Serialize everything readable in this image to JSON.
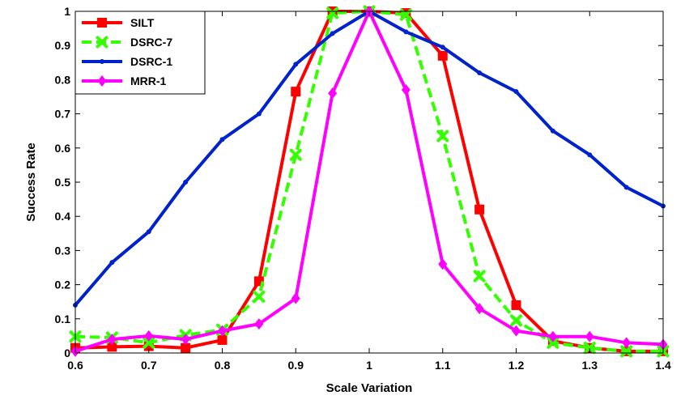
{
  "chart_data": {
    "type": "line",
    "title": "",
    "xlabel": "Scale Variation",
    "ylabel": "Success Rate",
    "xlim": [
      0.6,
      1.4
    ],
    "ylim": [
      0,
      1
    ],
    "xticks": [
      "0.6",
      "0.7",
      "0.8",
      "0.9",
      "1",
      "1.1",
      "1.2",
      "1.3",
      "1.4"
    ],
    "yticks": [
      "0",
      "0.1",
      "0.2",
      "0.3",
      "0.4",
      "0.5",
      "0.6",
      "0.7",
      "0.8",
      "0.9",
      "1"
    ],
    "x": [
      0.6,
      0.65,
      0.7,
      0.75,
      0.8,
      0.85,
      0.9,
      0.95,
      1.0,
      1.05,
      1.1,
      1.15,
      1.2,
      1.25,
      1.3,
      1.35,
      1.4
    ],
    "legend_position": "top-left",
    "series": [
      {
        "name": "SILT",
        "color": "#ff0000",
        "marker": "square",
        "dash": "solid",
        "values": [
          0.015,
          0.018,
          0.02,
          0.015,
          0.038,
          0.21,
          0.765,
          1.0,
          1.0,
          0.995,
          0.87,
          0.42,
          0.14,
          0.035,
          0.015,
          0.005,
          0.005
        ]
      },
      {
        "name": "DSRC-7",
        "color": "#33ff00",
        "marker": "x",
        "dash": "dashed",
        "values": [
          0.048,
          0.045,
          0.03,
          0.052,
          0.068,
          0.165,
          0.58,
          0.995,
          1.0,
          0.99,
          0.635,
          0.225,
          0.095,
          0.03,
          0.015,
          0.005,
          0.005
        ]
      },
      {
        "name": "DSRC-1",
        "color": "#0022cc",
        "marker": "dot",
        "dash": "solid",
        "values": [
          0.14,
          0.265,
          0.355,
          0.5,
          0.625,
          0.7,
          0.845,
          0.935,
          1.0,
          0.94,
          0.895,
          0.82,
          0.765,
          0.65,
          0.58,
          0.485,
          0.43
        ]
      },
      {
        "name": "MRR-1",
        "color": "#ff00ff",
        "marker": "diamond",
        "dash": "solid",
        "values": [
          0.005,
          0.04,
          0.05,
          0.04,
          0.065,
          0.085,
          0.16,
          0.76,
          1.0,
          0.77,
          0.26,
          0.13,
          0.065,
          0.048,
          0.048,
          0.03,
          0.025
        ]
      }
    ]
  }
}
